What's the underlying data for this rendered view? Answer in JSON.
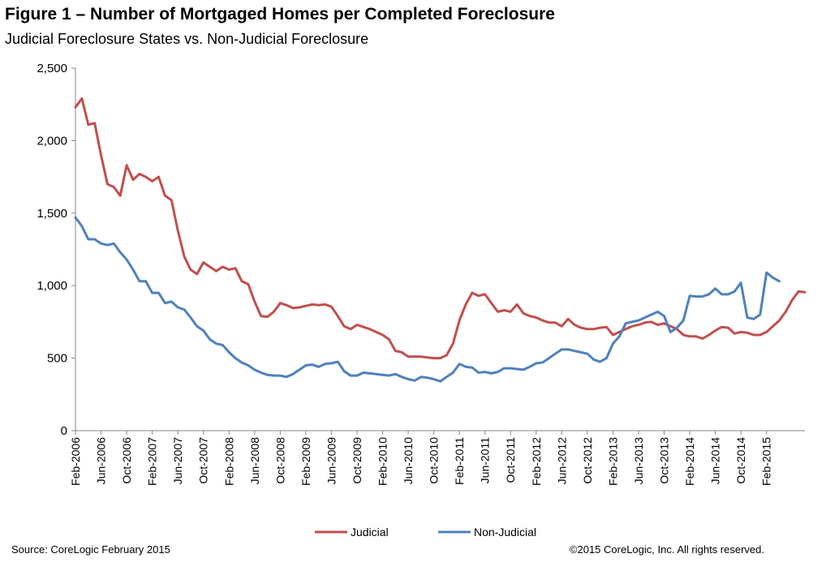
{
  "chart_data": {
    "type": "line",
    "title": "Figure 1 – Number of Mortgaged Homes per Completed Foreclosure",
    "subtitle": "Judicial Foreclosure States vs. Non-Judicial Foreclosure",
    "xlabel": "",
    "ylabel": "",
    "ylim": [
      0,
      2500
    ],
    "yticks": [
      0,
      500,
      1000,
      1500,
      2000,
      2500
    ],
    "ytick_labels": [
      "0",
      "500",
      "1,000",
      "1,500",
      "2,000",
      "2,500"
    ],
    "xtick_labels": [
      "Feb-2006",
      "Jun-2006",
      "Oct-2006",
      "Feb-2007",
      "Jun-2007",
      "Oct-2007",
      "Feb-2008",
      "Jun-2008",
      "Oct-2008",
      "Feb-2009",
      "Jun-2009",
      "Oct-2009",
      "Feb-2010",
      "Jun-2010",
      "Oct-2010",
      "Feb-2011",
      "Jun-2011",
      "Oct-2011",
      "Feb-2012",
      "Jun-2012",
      "Oct-2012",
      "Feb-2013",
      "Jun-2013",
      "Oct-2013",
      "Feb-2014",
      "Jun-2014",
      "Oct-2014",
      "Feb-2015"
    ],
    "x_start": "Feb-2006",
    "x_end": "Feb-2015",
    "grid": false,
    "legend_position": "bottom-center",
    "series": [
      {
        "name": "Judicial",
        "color": "#c0504d",
        "values": [
          2230,
          2290,
          2110,
          2120,
          1900,
          1700,
          1680,
          1620,
          1830,
          1730,
          1770,
          1750,
          1720,
          1750,
          1620,
          1590,
          1380,
          1200,
          1110,
          1080,
          1160,
          1130,
          1100,
          1130,
          1110,
          1120,
          1030,
          1010,
          890,
          790,
          785,
          820,
          880,
          865,
          845,
          850,
          860,
          870,
          865,
          870,
          855,
          790,
          720,
          700,
          730,
          715,
          700,
          680,
          660,
          630,
          550,
          540,
          510,
          510,
          510,
          505,
          500,
          500,
          520,
          600,
          760,
          870,
          950,
          930,
          940,
          880,
          820,
          830,
          820,
          870,
          810,
          790,
          780,
          760,
          745,
          745,
          720,
          770,
          730,
          710,
          700,
          700,
          710,
          715,
          660,
          680,
          700,
          720,
          730,
          745,
          750,
          730,
          740,
          720,
          700,
          660,
          650,
          650,
          635,
          660,
          690,
          715,
          710,
          670,
          680,
          675,
          660,
          660,
          680,
          720,
          760,
          820,
          900,
          960,
          955
        ]
      },
      {
        "name": "Non-Judicial",
        "color": "#4f81bd",
        "values": [
          1470,
          1410,
          1320,
          1320,
          1290,
          1280,
          1290,
          1230,
          1180,
          1110,
          1030,
          1030,
          950,
          950,
          880,
          890,
          850,
          835,
          780,
          720,
          690,
          630,
          600,
          590,
          540,
          500,
          470,
          450,
          420,
          400,
          385,
          380,
          380,
          370,
          390,
          420,
          450,
          455,
          440,
          460,
          465,
          475,
          410,
          380,
          380,
          400,
          395,
          390,
          385,
          380,
          390,
          370,
          355,
          345,
          370,
          365,
          355,
          340,
          370,
          400,
          460,
          440,
          435,
          400,
          405,
          395,
          405,
          430,
          430,
          425,
          420,
          440,
          465,
          470,
          500,
          530,
          560,
          560,
          550,
          540,
          530,
          490,
          475,
          500,
          600,
          650,
          740,
          750,
          760,
          780,
          800,
          820,
          790,
          680,
          710,
          760,
          930,
          925,
          925,
          940,
          980,
          940,
          940,
          960,
          1020,
          780,
          770,
          800,
          1090,
          1055,
          1030
        ]
      }
    ]
  },
  "footer": {
    "source": "Source: CoreLogic  February 2015",
    "copyright": "©2015 CoreLogic, Inc. All rights reserved."
  }
}
